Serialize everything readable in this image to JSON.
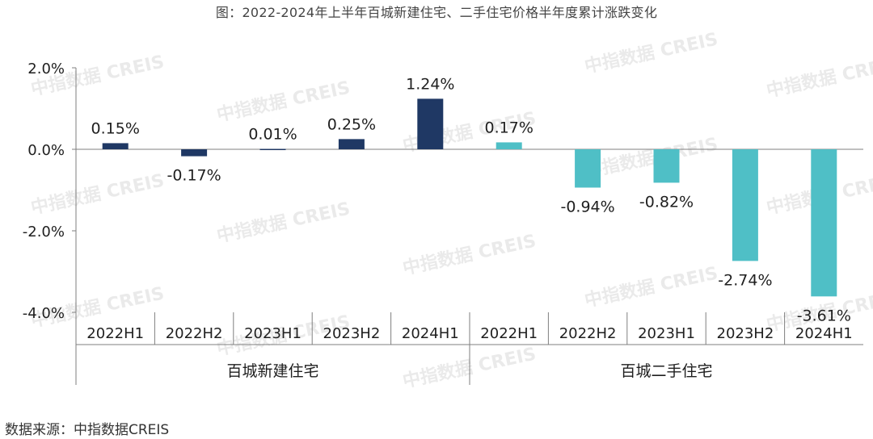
{
  "title": "图：2022-2024年上半年百城新建住宅、二手住宅价格半年度累计涨跌变化",
  "source": "数据来源：中指数据CREIS",
  "watermark": "中指数据 CREIS",
  "colors": {
    "new": "#1f3864",
    "second": "#4fbfc6",
    "axis": "#7f7f7f"
  },
  "chart_data": {
    "type": "bar",
    "ylim": [
      -4.0,
      2.0
    ],
    "yticks": [
      2.0,
      0.0,
      -2.0,
      -4.0
    ],
    "ytick_labels": [
      "2.0%",
      "0.0%",
      "-2.0%",
      "-4.0%"
    ],
    "groups": [
      {
        "name": "百城新建住宅",
        "categories": [
          "2022H1",
          "2022H2",
          "2023H1",
          "2023H2",
          "2024H1"
        ],
        "values": [
          0.15,
          -0.17,
          0.01,
          0.25,
          1.24
        ],
        "labels": [
          "0.15%",
          "-0.17%",
          "0.01%",
          "0.25%",
          "1.24%"
        ]
      },
      {
        "name": "百城二手住宅",
        "categories": [
          "2022H1",
          "2022H2",
          "2023H1",
          "2023H2",
          "2024H1"
        ],
        "values": [
          0.17,
          -0.94,
          -0.82,
          -2.74,
          -3.61
        ],
        "labels": [
          "0.17%",
          "-0.94%",
          "-0.82%",
          "-2.74%",
          "-3.61%"
        ]
      }
    ]
  }
}
